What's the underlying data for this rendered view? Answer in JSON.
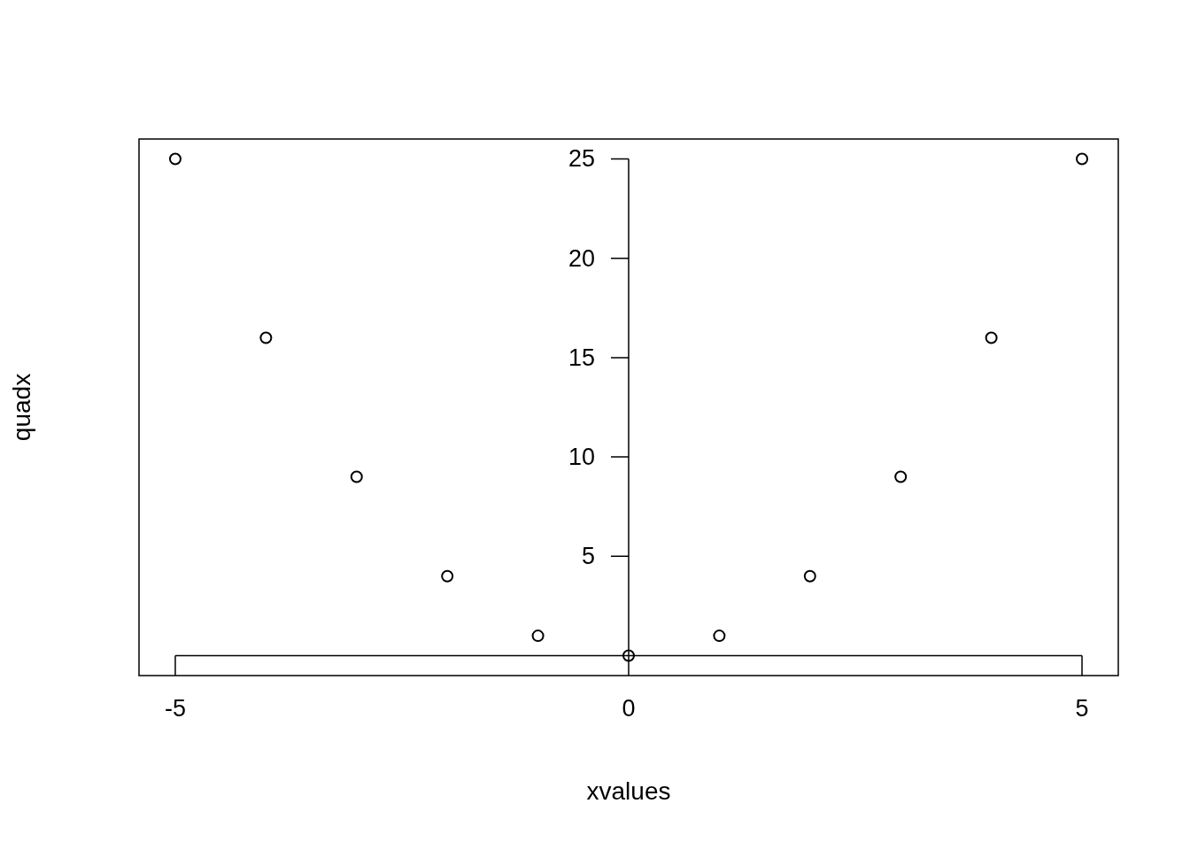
{
  "chart_data": {
    "type": "scatter",
    "xlabel": "xvalues",
    "ylabel": "quadx",
    "x": [
      -5,
      -4,
      -3,
      -2,
      -1,
      0,
      1,
      2,
      3,
      4,
      5
    ],
    "values": [
      25,
      16,
      9,
      4,
      1,
      0,
      1,
      4,
      9,
      16,
      25
    ],
    "color": "#000000",
    "marker": "circle",
    "grid": false,
    "xlim": [
      -5.4,
      5.4
    ],
    "ylim": [
      -1,
      26
    ],
    "xticks": [
      -5,
      0,
      5
    ],
    "yticks": [
      5,
      10,
      15,
      20,
      25
    ]
  }
}
